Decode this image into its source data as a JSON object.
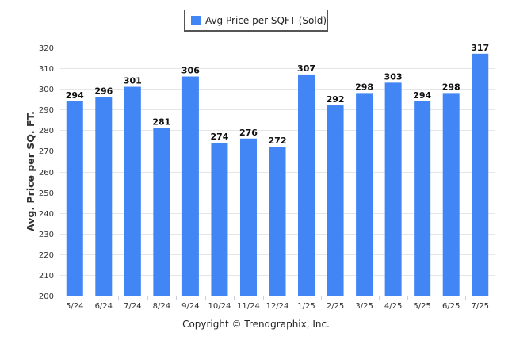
{
  "chart_data": {
    "type": "bar",
    "categories": [
      "5/24",
      "6/24",
      "7/24",
      "8/24",
      "9/24",
      "10/24",
      "11/24",
      "12/24",
      "1/25",
      "2/25",
      "3/25",
      "4/25",
      "5/25",
      "6/25",
      "7/25"
    ],
    "series": [
      {
        "name": "Avg Price per SQFT (Sold)",
        "values": [
          294,
          296,
          301,
          281,
          306,
          274,
          276,
          272,
          307,
          292,
          298,
          303,
          294,
          298,
          317
        ]
      }
    ],
    "title": "",
    "xlabel": "",
    "ylabel": "Avg. Price per SQ. FT.",
    "ylim": [
      200,
      320
    ],
    "yticks": [
      200,
      210,
      220,
      230,
      240,
      250,
      260,
      270,
      280,
      290,
      300,
      310,
      320
    ],
    "grid": true,
    "legend_position": "top-center",
    "bar_color": "#4285f4"
  },
  "footer": {
    "copyright": "Copyright © Trendgraphix, Inc."
  }
}
